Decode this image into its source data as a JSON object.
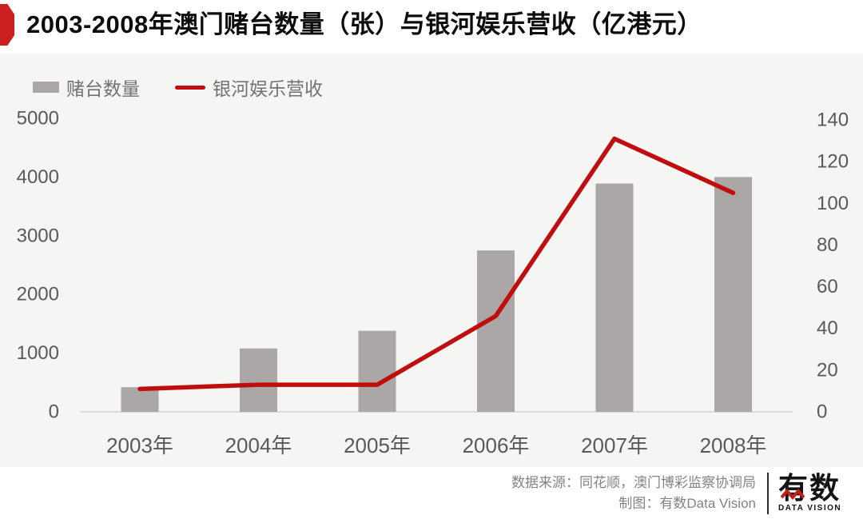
{
  "header": {
    "title": "2003-2008年澳门赌台数量（张）与银河娱乐营收（亿港元）"
  },
  "legend": [
    {
      "label": "赌台数量",
      "type": "bar",
      "color": "#aaa7a6"
    },
    {
      "label": "银河娱乐营收",
      "type": "line",
      "color": "#c00d0d"
    }
  ],
  "chart_data": {
    "type": "bar+line combo",
    "title": "2003-2008年澳门赌台数量（张）与银河娱乐营收（亿港元）",
    "categories": [
      "2003年",
      "2004年",
      "2005年",
      "2006年",
      "2007年",
      "2008年"
    ],
    "series": [
      {
        "name": "赌台数量",
        "type": "bar",
        "axis": "left",
        "unit": "张",
        "color": "#aaa7a6",
        "values": [
          420,
          1080,
          1380,
          2750,
          3890,
          4000
        ]
      },
      {
        "name": "银河娱乐营收",
        "type": "line",
        "axis": "right",
        "unit": "亿港元",
        "color": "#c00d0d",
        "values": [
          11,
          13,
          13,
          46,
          131,
          105
        ]
      }
    ],
    "left_axis": {
      "ticks": [
        0,
        1000,
        2000,
        3000,
        4000,
        5000
      ],
      "range": [
        0,
        5000
      ]
    },
    "right_axis": {
      "ticks": [
        0,
        20,
        40,
        60,
        80,
        100,
        120,
        140
      ],
      "range": [
        0,
        140
      ]
    },
    "grid": false,
    "legend_position": "top-left",
    "axis_text_color": "#595959",
    "baseline_color": "#dcdad9"
  },
  "footer": {
    "source": "数据来源：同花顺，澳门博彩监察协调局",
    "credit": "制图：有数Data Vision",
    "logo": {
      "name": "有数",
      "sub": "DATA VISION"
    }
  }
}
